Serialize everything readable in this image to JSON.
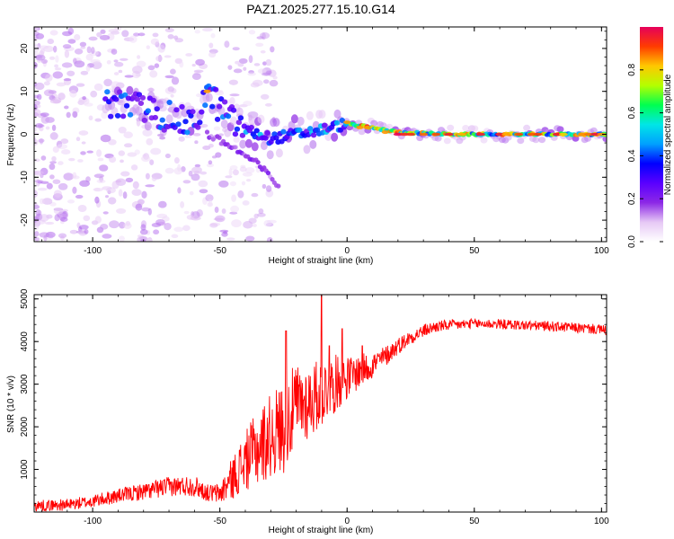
{
  "title": "PAZ1.2025.277.15.10.G14",
  "chart_data": [
    {
      "type": "heatmap",
      "name": "spectrogram",
      "title": "PAZ1.2025.277.15.10.G14",
      "xlabel": "Height of straight line (km)",
      "ylabel": "Frequency (Hz)",
      "xlim": [
        -123,
        102
      ],
      "ylim": [
        -25,
        25
      ],
      "xticks": [
        -100,
        -50,
        0,
        50,
        100
      ],
      "yticks": [
        -20,
        -10,
        0,
        10,
        20
      ],
      "grid": false,
      "colorbar": {
        "label": "Normalized spectral amplitude",
        "range": [
          0.0,
          1.0
        ],
        "ticks": [
          0.0,
          0.2,
          0.4,
          0.6,
          0.8
        ],
        "colors": [
          "#ffffff",
          "#e6c8f5",
          "#8c28e6",
          "#5a00ff",
          "#0000ff",
          "#00a0ff",
          "#00e6e6",
          "#00ff50",
          "#b4ff00",
          "#ffc800",
          "#ff3c00",
          "#e6005a"
        ]
      },
      "features": {
        "main_trace_freq_hz": [
          [
            -90,
            7
          ],
          [
            -80,
            6
          ],
          [
            -70,
            4
          ],
          [
            -60,
            2
          ],
          [
            -55,
            10
          ],
          [
            -50,
            6
          ],
          [
            -45,
            3
          ],
          [
            -40,
            1
          ],
          [
            -30,
            -1
          ],
          [
            -20,
            0
          ],
          [
            -10,
            1
          ],
          [
            0,
            2.5
          ],
          [
            10,
            1.5
          ],
          [
            20,
            0.5
          ],
          [
            40,
            0
          ],
          [
            60,
            0
          ],
          [
            80,
            0
          ],
          [
            100,
            0
          ]
        ],
        "secondary_branch_freq_hz": [
          [
            -55,
            0
          ],
          [
            -45,
            -3
          ],
          [
            -40,
            -5
          ],
          [
            -35,
            -7
          ],
          [
            -30,
            -10
          ],
          [
            -27,
            -12
          ]
        ]
      }
    },
    {
      "type": "line",
      "name": "snr",
      "xlabel": "Height of straight line (km)",
      "ylabel": "SNR (10 * v/v)",
      "xlim": [
        -123,
        102
      ],
      "ylim": [
        0,
        5100
      ],
      "xticks": [
        -100,
        -50,
        0,
        50,
        100
      ],
      "yticks": [
        1000,
        2000,
        3000,
        4000,
        5000
      ],
      "grid": false,
      "series": [
        {
          "name": "SNR",
          "color": "#ff0000",
          "x": [
            -123,
            -110,
            -100,
            -90,
            -80,
            -70,
            -60,
            -55,
            -50,
            -45,
            -40,
            -35,
            -30,
            -25,
            -20,
            -15,
            -10,
            -5,
            0,
            5,
            10,
            15,
            20,
            25,
            30,
            35,
            40,
            50,
            60,
            70,
            80,
            90,
            100,
            102
          ],
          "y": [
            150,
            170,
            250,
            380,
            480,
            600,
            620,
            450,
            430,
            800,
            1200,
            1500,
            1800,
            2000,
            2500,
            2600,
            2800,
            3000,
            3150,
            3300,
            3450,
            3650,
            3900,
            4100,
            4250,
            4350,
            4380,
            4420,
            4410,
            4380,
            4360,
            4320,
            4280,
            4250
          ],
          "noise_amp": [
            130,
            140,
            150,
            170,
            200,
            230,
            250,
            200,
            250,
            500,
            700,
            900,
            1000,
            1100,
            1000,
            900,
            800,
            700,
            500,
            400,
            320,
            250,
            200,
            170,
            150,
            140,
            130,
            120,
            120,
            120,
            120,
            120,
            120,
            120
          ],
          "peaks": [
            [
              -24,
              4250
            ],
            [
              -10,
              5100
            ],
            [
              -7,
              3900
            ],
            [
              -2,
              4300
            ],
            [
              6,
              3900
            ]
          ]
        }
      ]
    }
  ]
}
